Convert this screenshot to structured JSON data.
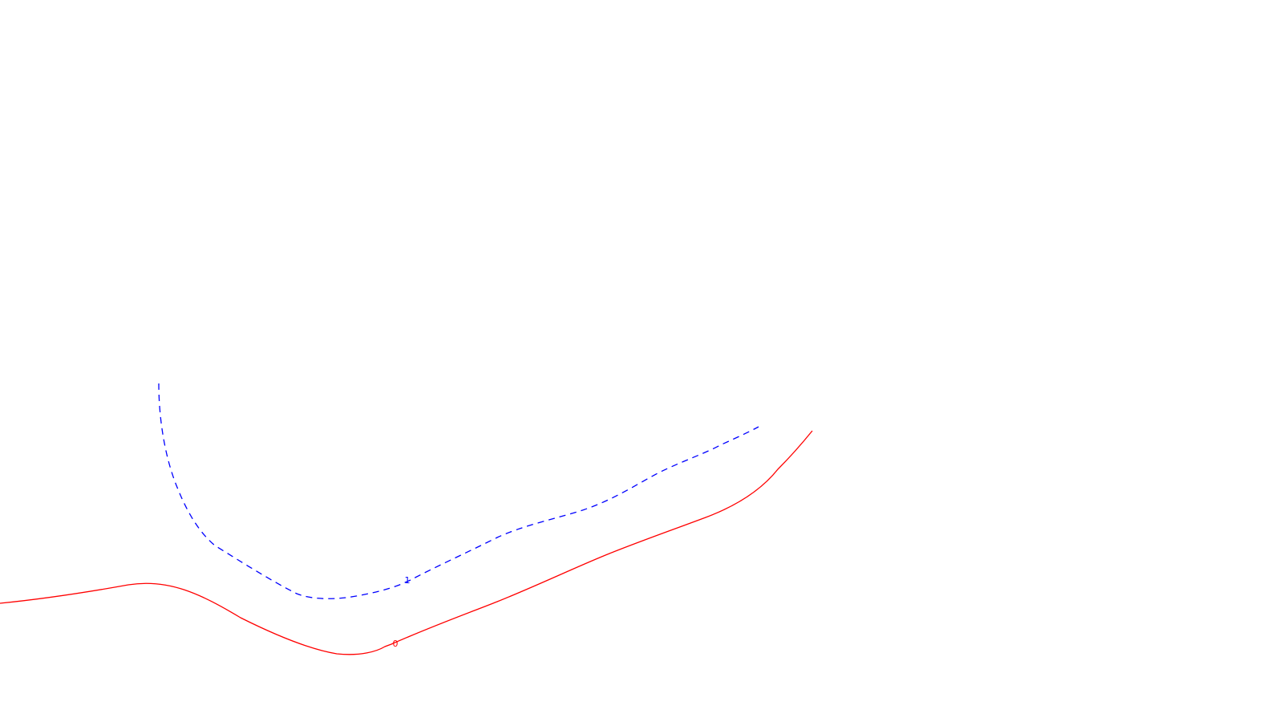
{
  "canvas": {
    "background": "#ffffff"
  },
  "contours": [
    {
      "id": "contour-0",
      "label": "0",
      "color": "#ff0000",
      "style": "solid"
    },
    {
      "id": "contour-1",
      "label": "1",
      "color": "#0000ff",
      "style": "dashed"
    }
  ]
}
